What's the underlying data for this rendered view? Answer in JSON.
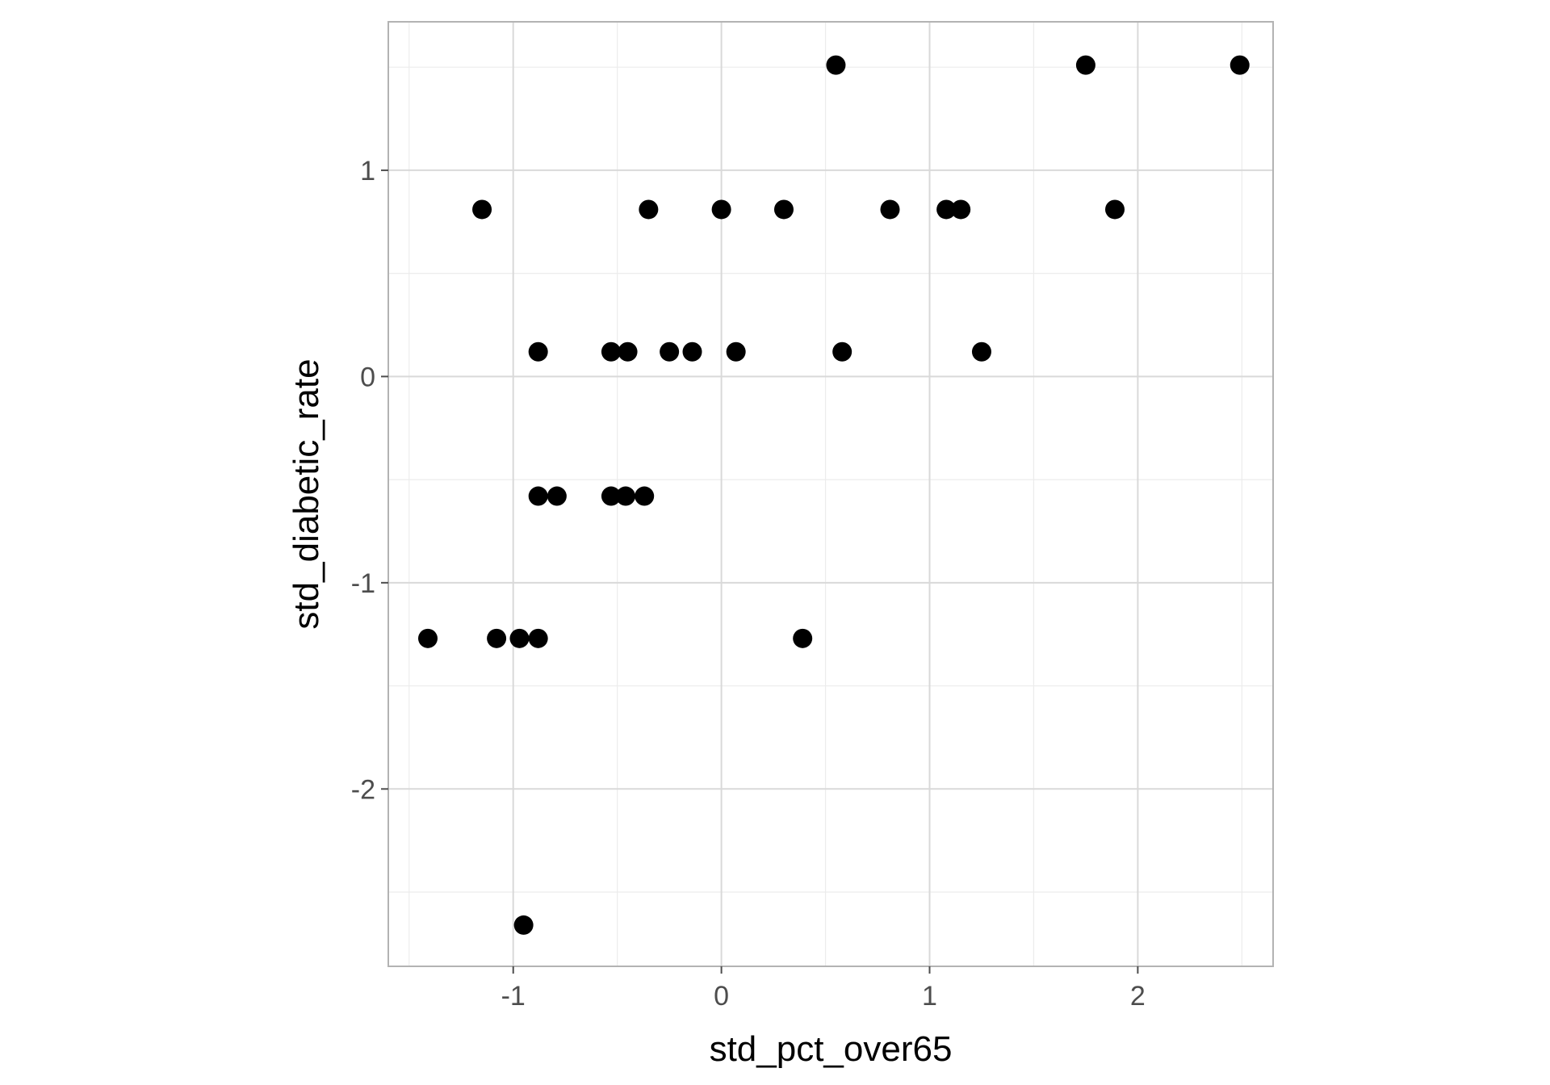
{
  "chart_data": {
    "type": "scatter",
    "title": "",
    "xlabel": "std_pct_over65",
    "ylabel": "std_diabetic_rate",
    "xlim": [
      -1.6,
      2.65
    ],
    "ylim": [
      -2.86,
      1.72
    ],
    "x_ticks": [
      -1,
      0,
      1,
      2
    ],
    "x_tick_labels": [
      "-1",
      "0",
      "1",
      "2"
    ],
    "y_ticks": [
      -2,
      -1,
      0,
      1
    ],
    "y_tick_labels": [
      "-2",
      "-1",
      "0",
      "1"
    ],
    "grid": true,
    "legend": "none",
    "point_color": "#000000",
    "x": [
      0.55,
      1.75,
      2.49,
      -1.15,
      -0.35,
      0.0,
      0.3,
      0.81,
      1.08,
      1.15,
      1.89,
      -0.88,
      -0.53,
      -0.45,
      -0.25,
      -0.14,
      0.07,
      0.58,
      1.25,
      -0.88,
      -0.79,
      -0.53,
      -0.46,
      -0.37,
      -1.41,
      -1.08,
      -0.97,
      -0.88,
      0.39,
      -0.95
    ],
    "y": [
      1.51,
      1.51,
      1.51,
      0.81,
      0.81,
      0.81,
      0.81,
      0.81,
      0.81,
      0.81,
      0.81,
      0.12,
      0.12,
      0.12,
      0.12,
      0.12,
      0.12,
      0.12,
      0.12,
      -0.58,
      -0.58,
      -0.58,
      -0.58,
      -0.58,
      -1.27,
      -1.27,
      -1.27,
      -1.27,
      -1.27,
      -2.66
    ]
  }
}
